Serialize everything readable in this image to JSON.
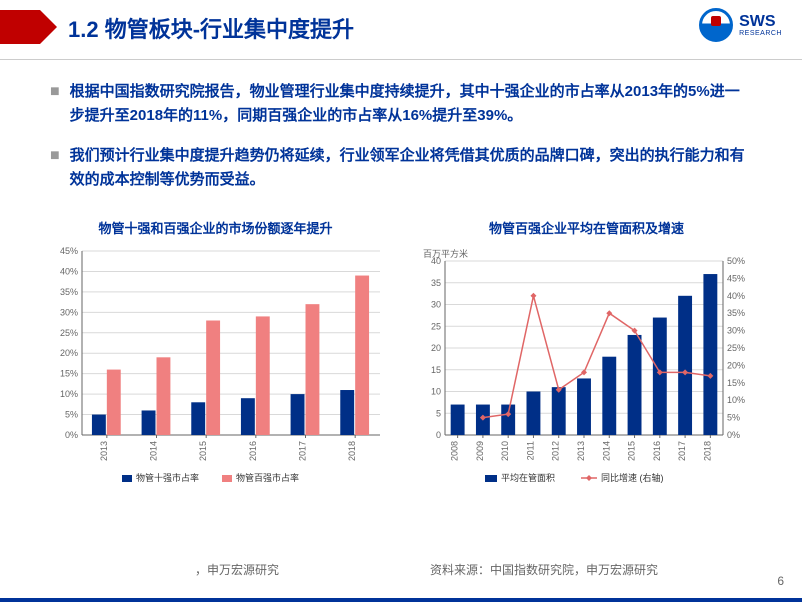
{
  "header": {
    "title": "1.2 物管板块-行业集中度提升",
    "logo_main": "SWS",
    "logo_sub": "RESEARCH"
  },
  "bullets": [
    "根据中国指数研究院报告，物业管理行业集中度持续提升，其中十强企业的市占率从2013年的5%进一步提升至2018年的11%，同期百强企业的市占率从16%提升至39%。",
    "我们预计行业集中度提升趋势仍将延续，行业领军企业将凭借其优质的品牌口碑，突出的执行能力和有效的成本控制等优势而受益。"
  ],
  "chart1": {
    "title": "物管十强和百强企业的市场份额逐年提升",
    "type": "bar",
    "categories": [
      "2013",
      "2014",
      "2015",
      "2016",
      "2017",
      "2018"
    ],
    "series": [
      {
        "name": "物管十强市占率",
        "color": "#002f87",
        "values": [
          5,
          6,
          8,
          9,
          10,
          11
        ]
      },
      {
        "name": "物管百强市占率",
        "color": "#f08080",
        "values": [
          16,
          19,
          28,
          29,
          32,
          39
        ]
      }
    ],
    "ylim": [
      0,
      45
    ],
    "ytick_step": 5,
    "y_suffix": "%",
    "background_color": "#ffffff",
    "grid_color": "#d9d9d9",
    "bar_group_width": 0.6,
    "label_fontsize": 9,
    "title_fontsize": 13
  },
  "chart2": {
    "title": "物管百强企业平均在管面积及增速",
    "type": "bar+line",
    "unit_label": "百万平方米",
    "categories": [
      "2008",
      "2009",
      "2010",
      "2011",
      "2012",
      "2013",
      "2014",
      "2015",
      "2016",
      "2017",
      "2018"
    ],
    "bar_series": {
      "name": "平均在管面积",
      "color": "#002f87",
      "values": [
        7,
        7,
        7,
        10,
        11,
        13,
        18,
        23,
        27,
        32,
        37
      ]
    },
    "line_series": {
      "name": "同比增速 (右轴)",
      "color": "#e06666",
      "values": [
        null,
        5,
        6,
        40,
        13,
        18,
        35,
        30,
        18,
        18,
        17
      ]
    },
    "ylim_left": [
      0,
      40
    ],
    "ytick_left_step": 5,
    "ylim_right": [
      0,
      50
    ],
    "ytick_right_step": 5,
    "y_right_suffix": "%",
    "background_color": "#ffffff",
    "grid_color": "#d9d9d9",
    "marker_style": "diamond",
    "line_width": 1.5,
    "label_fontsize": 9,
    "title_fontsize": 13
  },
  "sources": {
    "left": "，申万宏源研究",
    "right": "资料来源：中国指数研究院，申万宏源研究"
  },
  "page_number": "6"
}
